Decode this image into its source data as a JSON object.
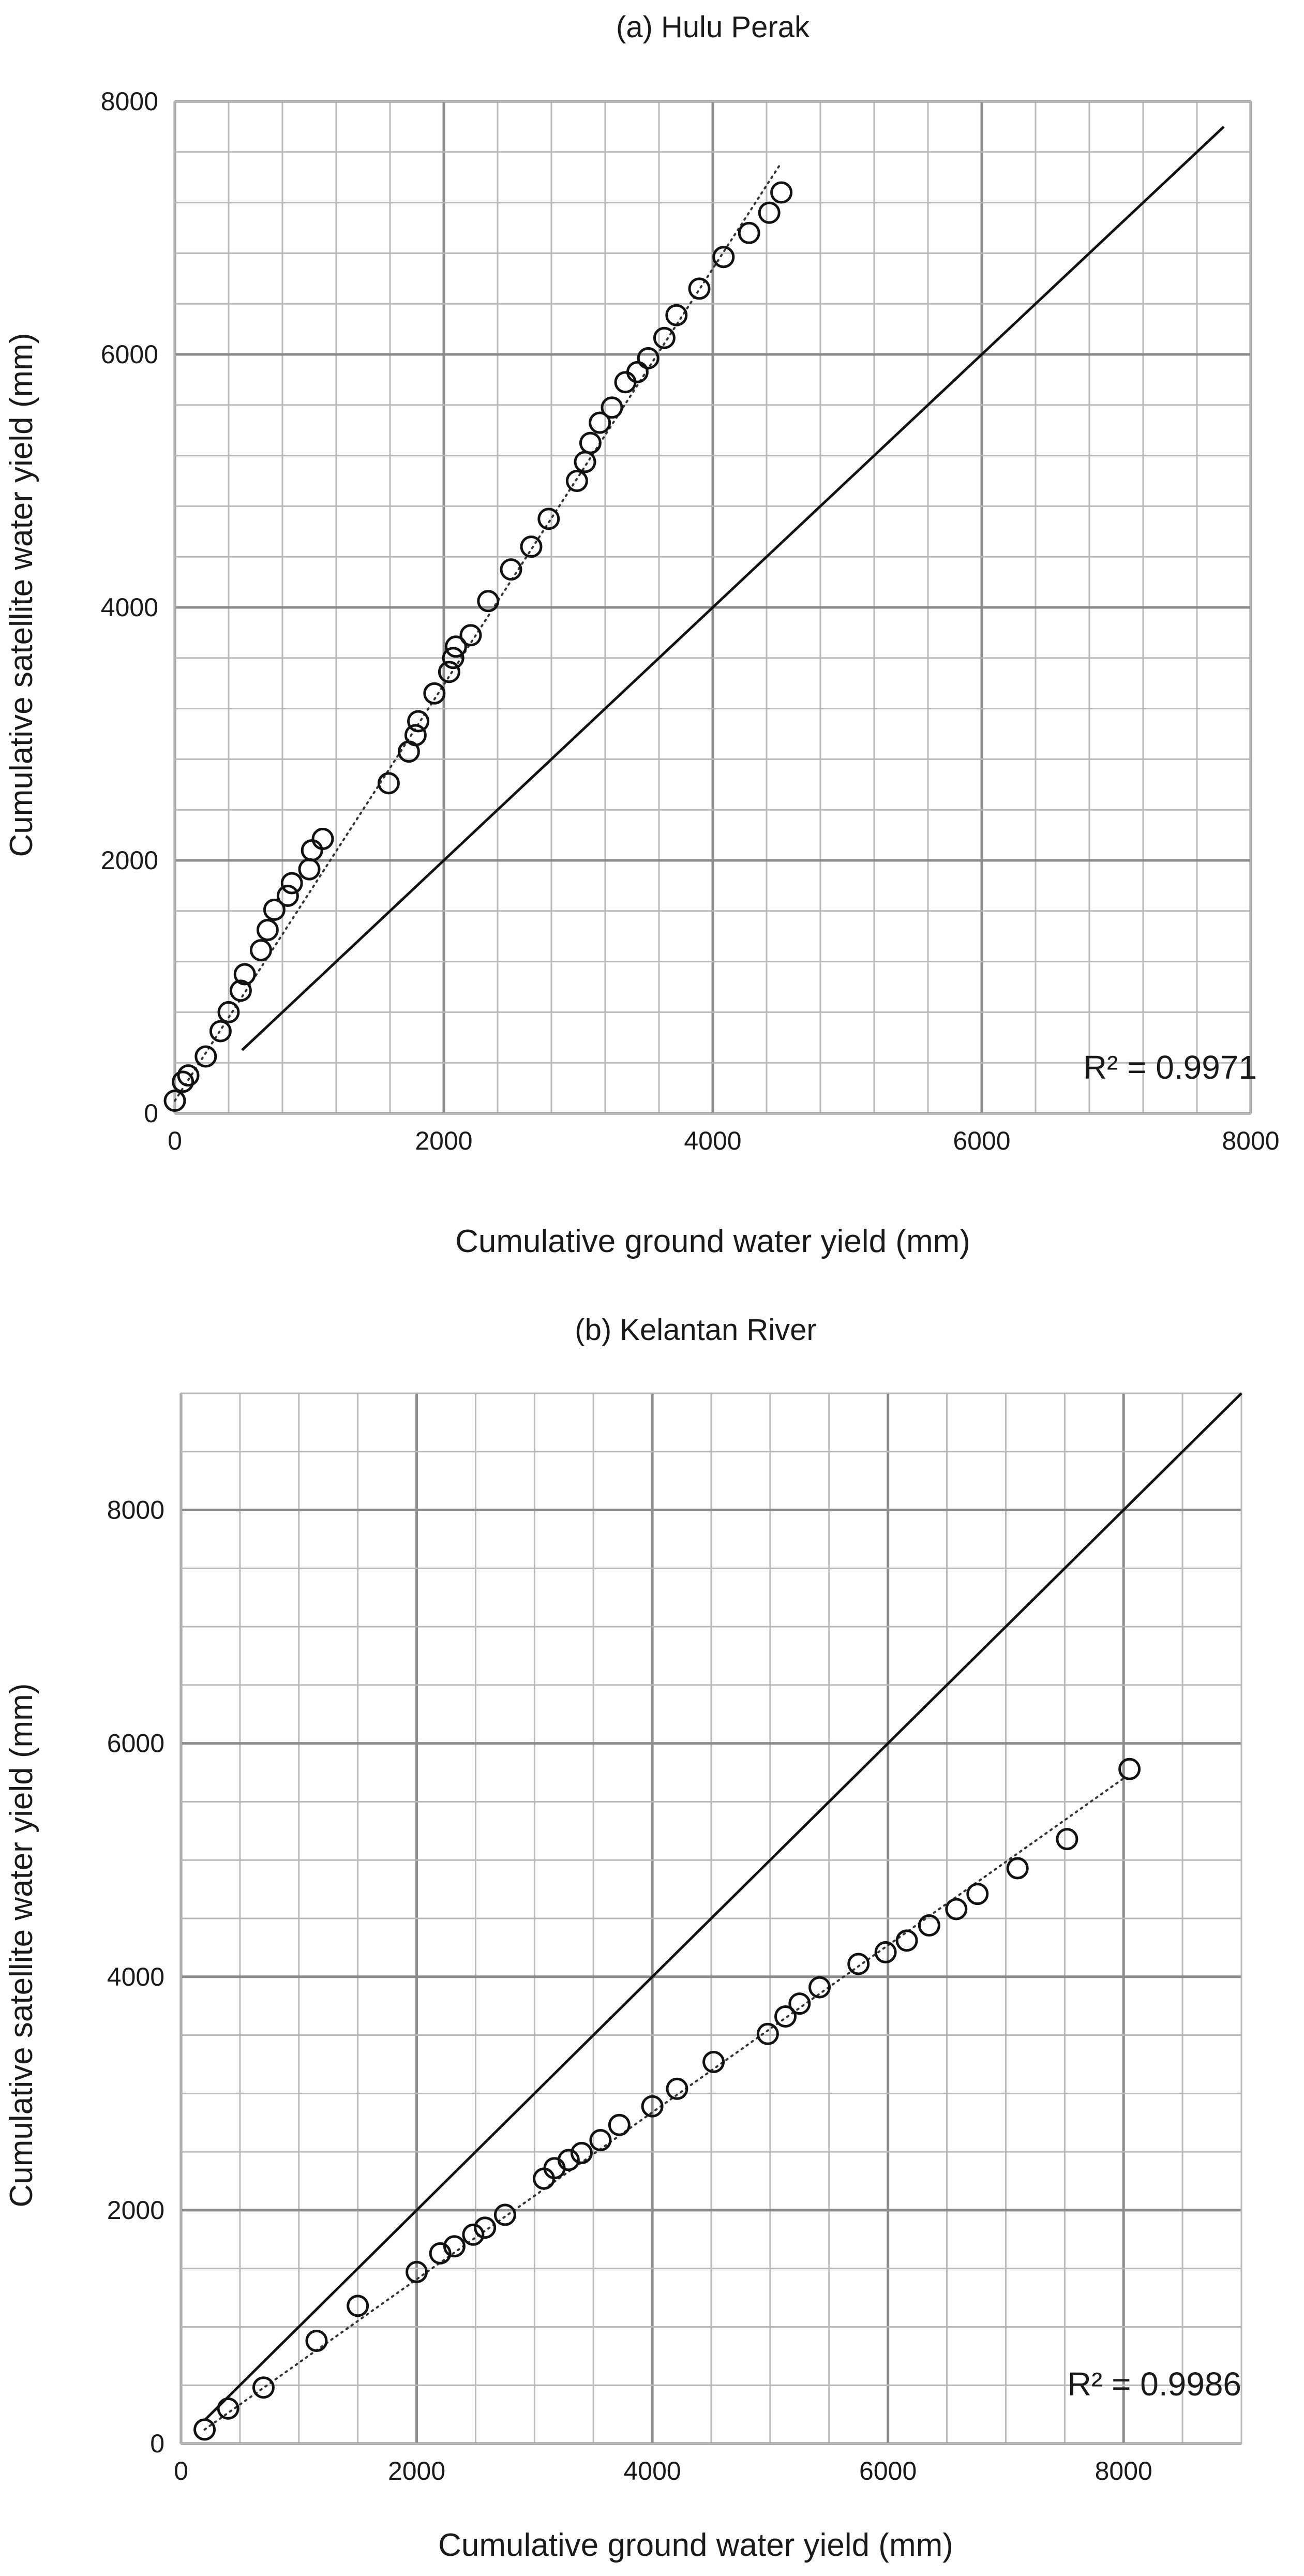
{
  "chart_data": [
    {
      "type": "scatter",
      "title": "(a) Hulu Perak",
      "xlabel": "Cumulative ground water yield (mm)",
      "ylabel": "Cumulative satellite water yield (mm)",
      "xlim": [
        0,
        8000
      ],
      "ylim": [
        0,
        8000
      ],
      "xticks": [
        "0",
        "2000",
        "4000",
        "6000",
        "8000"
      ],
      "yticks": [
        "0",
        "2000",
        "4000",
        "6000",
        "8000"
      ],
      "grid": true,
      "annotation": "R² = 0.9971",
      "reference_line": {
        "name": "1:1 line",
        "x": [
          500,
          7800
        ],
        "y": [
          500,
          7800
        ]
      },
      "trendline": {
        "name": "linear fit",
        "style": "dotted",
        "x": [
          0,
          4500
        ],
        "y": [
          100,
          7500
        ]
      },
      "series": [
        {
          "name": "observations",
          "x": [
            0,
            60,
            100,
            230,
            340,
            400,
            490,
            520,
            640,
            690,
            740,
            840,
            870,
            1000,
            1020,
            1100,
            1590,
            1740,
            1790,
            1810,
            1930,
            2040,
            2070,
            2090,
            2200,
            2330,
            2500,
            2650,
            2780,
            2990,
            3050,
            3090,
            3160,
            3250,
            3350,
            3440,
            3520,
            3640,
            3730,
            3900,
            4080,
            4270,
            4420,
            4510
          ],
          "y": [
            100,
            250,
            300,
            450,
            650,
            800,
            970,
            1100,
            1290,
            1450,
            1610,
            1720,
            1820,
            1930,
            2080,
            2170,
            2610,
            2860,
            2990,
            3100,
            3320,
            3490,
            3600,
            3690,
            3780,
            4050,
            4300,
            4480,
            4700,
            5000,
            5150,
            5300,
            5460,
            5580,
            5780,
            5860,
            5970,
            6130,
            6310,
            6520,
            6770,
            6960,
            7120,
            7280
          ]
        }
      ]
    },
    {
      "type": "scatter",
      "title": "(b) Kelantan River",
      "xlabel": "Cumulative ground water yield (mm)",
      "ylabel": "Cumulative satellite water yield (mm)",
      "xlim": [
        0,
        9000
      ],
      "ylim": [
        0,
        9000
      ],
      "xticks": [
        "0",
        "2000",
        "4000",
        "6000",
        "8000"
      ],
      "yticks": [
        "0",
        "2000",
        "4000",
        "6000",
        "8000"
      ],
      "grid": true,
      "annotation": "R² = 0.9986",
      "reference_line": {
        "name": "1:1 line",
        "x": [
          200,
          9000
        ],
        "y": [
          200,
          9000
        ]
      },
      "trendline": {
        "name": "linear fit",
        "style": "dotted",
        "x": [
          200,
          8000
        ],
        "y": [
          120,
          5700
        ]
      },
      "series": [
        {
          "name": "observations",
          "x": [
            200,
            400,
            700,
            1150,
            1500,
            2000,
            2200,
            2320,
            2480,
            2580,
            2750,
            3080,
            3170,
            3290,
            3400,
            3560,
            3720,
            4000,
            4210,
            4520,
            4980,
            5130,
            5250,
            5420,
            5750,
            5980,
            6160,
            6350,
            6580,
            6760,
            7100,
            7520,
            8050
          ],
          "y": [
            120,
            300,
            480,
            880,
            1180,
            1470,
            1630,
            1690,
            1790,
            1850,
            1960,
            2270,
            2360,
            2430,
            2490,
            2600,
            2730,
            2890,
            3040,
            3270,
            3510,
            3660,
            3770,
            3910,
            4110,
            4210,
            4310,
            4440,
            4580,
            4710,
            4930,
            5180,
            5780
          ]
        }
      ]
    }
  ]
}
